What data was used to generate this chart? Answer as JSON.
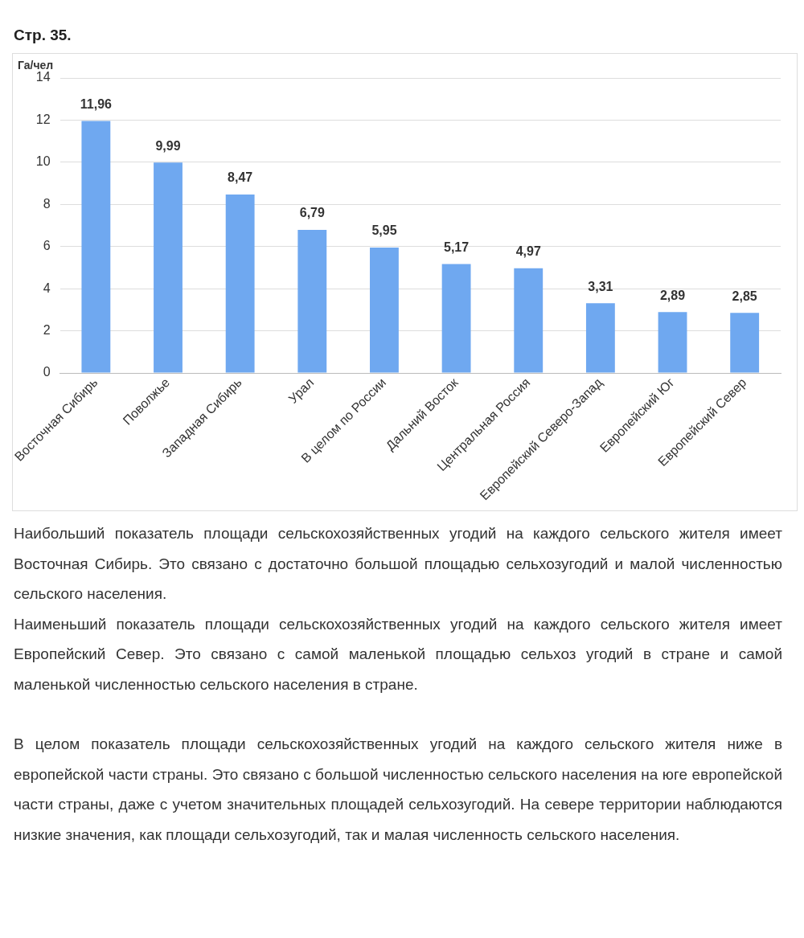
{
  "chart_data": {
    "type": "bar",
    "title": "Стр. 35.",
    "ylabel": "Га/чел",
    "categories": [
      "Восточная Сибирь",
      "Поволжье",
      "Западная Сибирь",
      "Урал",
      "В целом по России",
      "Дальний Восток",
      "Центральная Россия",
      "Европейский Северо-Запад",
      "Европейский Юг",
      "Европейский Север"
    ],
    "values": [
      11.96,
      9.99,
      8.47,
      6.79,
      5.95,
      5.17,
      4.97,
      3.31,
      2.89,
      2.85
    ],
    "value_labels": [
      "11,96",
      "9,99",
      "8,47",
      "6,79",
      "5,95",
      "5,17",
      "4,97",
      "3,31",
      "2,89",
      "2,85"
    ],
    "color": "#6fa8f0",
    "ylim": [
      0,
      14
    ],
    "yticks": [
      0,
      2,
      4,
      6,
      8,
      10,
      12,
      14
    ],
    "grid": "y",
    "annotations": [
      "Наибольший показатель площади сельскохозяйственных угодий на каждого сельского жителя имеет Восточная Сибирь. Это связано с достаточно большой площадью сельхозугодий и малой численностью сельского населения.",
      "Наименьший показатель площади сельскохозяйственных угодий на каждого сельского жителя имеет Европейский Север. Это связано с самой маленькой площадью сельхоз угодий в стране и самой маленькой численностью сельского населения в стране.",
      "В целом показатель площади сельскохозяйственных угодий на каждого сельского жителя ниже в европейской части страны. Это связано с большой численностью сельского населения на юге европейской части страны, даже с учетом значительных площадей сельхозугодий. На севере территории наблюдаются низкие значения, как площади сельхозугодий, так и малая численность сельского населения."
    ]
  }
}
